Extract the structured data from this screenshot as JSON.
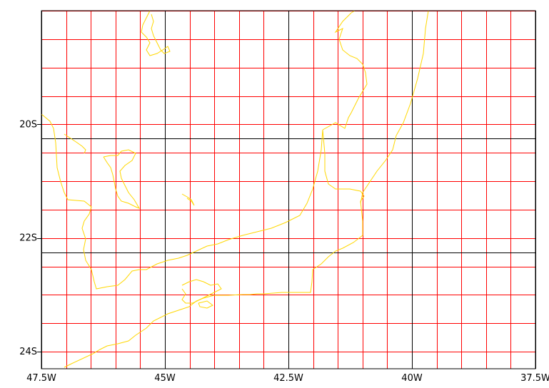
{
  "map": {
    "lon_range": [
      -47.5,
      -37.5
    ],
    "lat_range": [
      -24.3,
      -18.0
    ],
    "major_grid_color": "#000000",
    "minor_grid_color": "#ff0000",
    "coast_color": "#ffd700",
    "x_ticks": [
      {
        "label": "47.5W"
      },
      {
        "label": "45W"
      },
      {
        "label": "42.5W"
      },
      {
        "label": "40W"
      },
      {
        "label": "37.5W"
      }
    ],
    "y_ticks": [
      {
        "label": "20S"
      },
      {
        "label": "22S"
      },
      {
        "label": "24S"
      }
    ]
  }
}
